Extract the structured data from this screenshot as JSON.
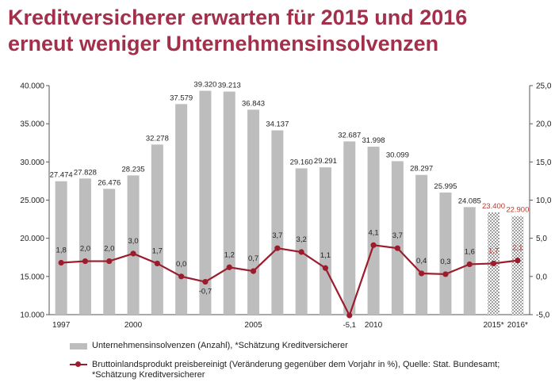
{
  "title": {
    "line1": "Kreditversicherer erwarten für 2015 und 2016",
    "line2": "erneut weniger Unternehmensinsolvenzen"
  },
  "colors": {
    "title": "#a2304b",
    "bars": "#bdbdbd",
    "line": "#9b1c2c",
    "estimate_text": "#c0392b"
  },
  "chart_data": {
    "type": "bar",
    "categories": [
      "1997",
      "1998",
      "1999",
      "2000",
      "2001",
      "2002",
      "2003",
      "2004",
      "2005",
      "2006",
      "2007",
      "2008",
      "2009",
      "2010",
      "2011",
      "2012",
      "2013",
      "2014",
      "2015*",
      "2016*"
    ],
    "x_tick_labels": [
      "1997",
      "",
      "",
      "2000",
      "",
      "",
      "",
      "",
      "2005",
      "",
      "",
      "",
      "",
      "2010",
      "",
      "",
      "",
      "",
      "2015*",
      "2016*"
    ],
    "series": [
      {
        "name": "Unternehmensinsolvenzen (Anzahl), *Schätzung Kreditversicherer",
        "axis": "left",
        "kind": "bar",
        "values": [
          27474,
          27828,
          26476,
          28235,
          32278,
          37579,
          39320,
          39213,
          36843,
          34137,
          29160,
          29291,
          32687,
          31998,
          30099,
          28297,
          25995,
          24085,
          23400,
          22900
        ],
        "labels": [
          "27.474",
          "27.828",
          "26.476",
          "28.235",
          "32.278",
          "37.579",
          "39.320",
          "39.213",
          "36.843",
          "34.137",
          "29.160",
          "29.291",
          "32.687",
          "31.998",
          "30.099",
          "28.297",
          "25.995",
          "24.085",
          "23.400",
          "22.900"
        ],
        "estimated": [
          false,
          false,
          false,
          false,
          false,
          false,
          false,
          false,
          false,
          false,
          false,
          false,
          false,
          false,
          false,
          false,
          false,
          false,
          true,
          true
        ]
      },
      {
        "name": "Bruttoinlandsprodukt preisbereinigt (Veränderung gegenüber dem Vorjahr in %), Quelle: Stat. Bundesamt; *Schätzung Kreditversicherer",
        "axis": "right",
        "kind": "line",
        "values": [
          1.8,
          2.0,
          2.0,
          3.0,
          1.7,
          0.0,
          -0.7,
          1.2,
          0.7,
          3.7,
          3.2,
          1.1,
          -5.1,
          4.1,
          3.7,
          0.4,
          0.3,
          1.6,
          1.7,
          2.1
        ],
        "labels": [
          "1,8",
          "2,0",
          "2,0",
          "3,0",
          "1,7",
          "0,0",
          "-0,7",
          "1,2",
          "0,7",
          "3,7",
          "3,2",
          "1,1",
          "-5,1",
          "4,1",
          "3,7",
          "0,4",
          "0,3",
          "1,6",
          "1,7",
          "2,1"
        ],
        "estimated": [
          false,
          false,
          false,
          false,
          false,
          false,
          false,
          false,
          false,
          false,
          false,
          false,
          false,
          false,
          false,
          false,
          false,
          false,
          true,
          true
        ]
      }
    ],
    "y_left": {
      "range": [
        10000,
        40000
      ],
      "ticks": [
        10000,
        15000,
        20000,
        25000,
        30000,
        35000,
        40000
      ],
      "tick_labels": [
        "10.000",
        "15.000",
        "20.000",
        "25.000",
        "30.000",
        "35.000",
        "40.000"
      ]
    },
    "y_right": {
      "range": [
        -5.0,
        25.0
      ],
      "ticks": [
        -5.0,
        0.0,
        5.0,
        10.0,
        15.0,
        20.0,
        25.0
      ],
      "tick_labels": [
        "-5,0",
        "0,0",
        "5,0",
        "10,0",
        "15,0",
        "20,0",
        "25,0"
      ]
    },
    "grid": false,
    "legend_position": "bottom"
  },
  "legend": {
    "bars": "Unternehmensinsolvenzen (Anzahl), *Schätzung Kreditversicherer",
    "line_1": "Bruttoinlandsprodukt preisbereinigt (Veränderung gegenüber dem Vorjahr in %), Quelle: Stat. Bundesamt;",
    "line_2": "*Schätzung Kreditversicherer"
  }
}
